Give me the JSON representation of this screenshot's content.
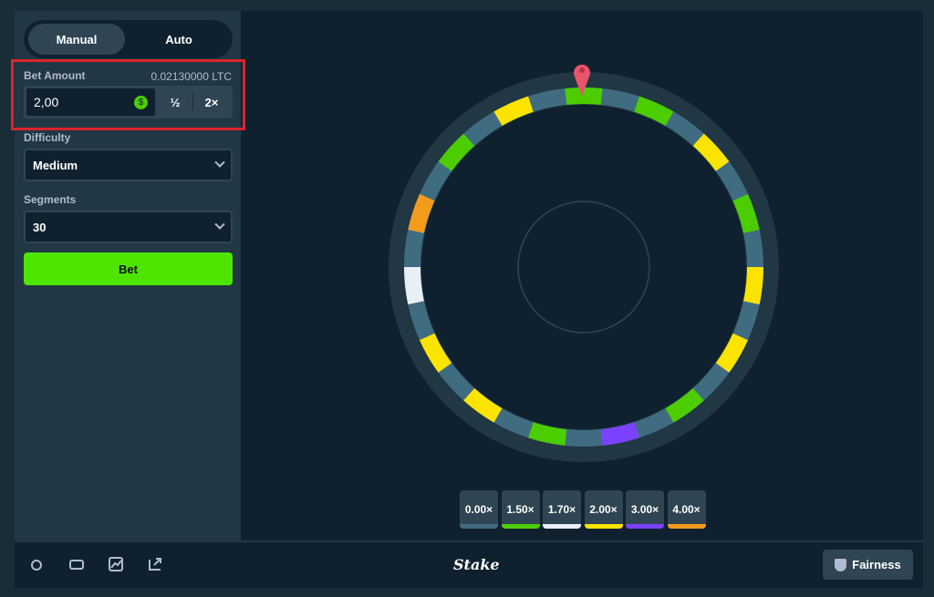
{
  "tabs": {
    "manual": "Manual",
    "auto": "Auto"
  },
  "bet": {
    "label": "Bet Amount",
    "balance": "0.02130000 LTC",
    "amount": "2,00",
    "half": "½",
    "double": "2×"
  },
  "difficulty": {
    "label": "Difficulty",
    "value": "Medium"
  },
  "segments": {
    "label": "Segments",
    "value": "30"
  },
  "bet_button": "Bet",
  "multipliers": [
    {
      "label": "0.00×",
      "color": "#406c82"
    },
    {
      "label": "1.50×",
      "color": "#4ccd00"
    },
    {
      "label": "1.70×",
      "color": "#e9f0f5"
    },
    {
      "label": "2.00×",
      "color": "#fce400"
    },
    {
      "label": "3.00×",
      "color": "#7b42ff"
    },
    {
      "label": "4.00×",
      "color": "#f29b1d"
    }
  ],
  "footer": {
    "logo": "Stake",
    "fairness": "Fairness"
  }
}
